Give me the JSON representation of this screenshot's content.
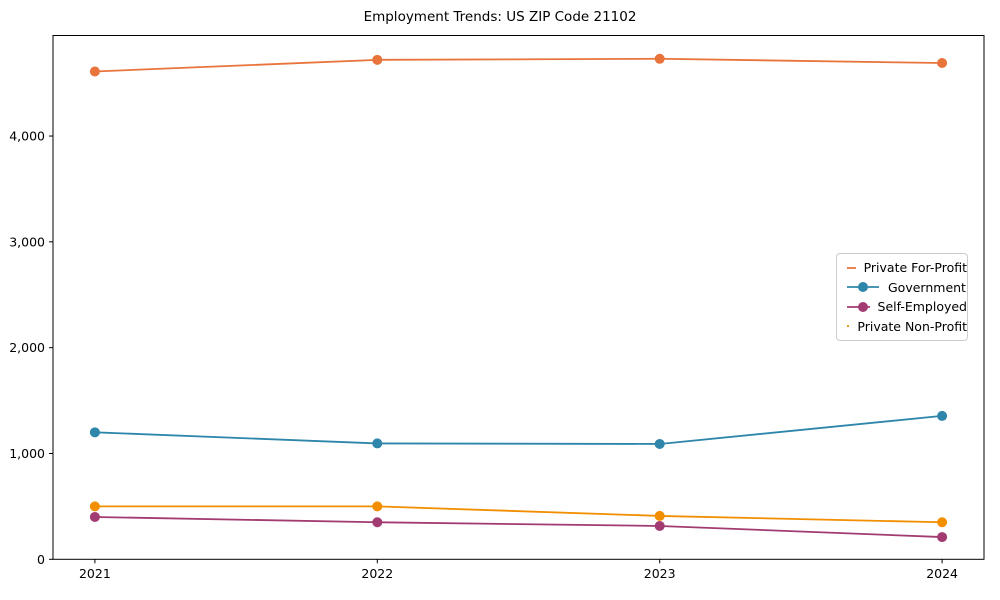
{
  "figure": {
    "title": "Employment Trends: US ZIP Code 21102"
  },
  "chart_data": {
    "type": "line",
    "title": "Employment Trends: US ZIP Code 21102",
    "categories": [
      "2021",
      "2022",
      "2023",
      "2024"
    ],
    "series": [
      {
        "name": "Private For-Profit",
        "color": "#E8743B",
        "values": [
          4610,
          4720,
          4730,
          4690
        ]
      },
      {
        "name": "Government",
        "color": "#2E86AB",
        "values": [
          1200,
          1095,
          1090,
          1355
        ]
      },
      {
        "name": "Self-Employed",
        "color": "#A23B72",
        "values": [
          400,
          350,
          315,
          210
        ]
      },
      {
        "name": "Private Non-Profit",
        "color": "#F18F01",
        "values": [
          500,
          500,
          410,
          350
        ]
      }
    ],
    "xlabel": "",
    "ylabel": "",
    "ylim": [
      0,
      4950
    ],
    "yticks": [
      0,
      1000,
      2000,
      3000,
      4000
    ],
    "ytick_labels": [
      "0",
      "1,000",
      "2,000",
      "3,000",
      "4,000"
    ],
    "grid": false,
    "legend_position": "center right",
    "marker": "circle",
    "line_width": 1.8,
    "marker_radius": 5
  },
  "colors": {
    "background": "#ffffff",
    "axis": "#000000",
    "text": "#000000",
    "legend_border": "#cccccc"
  }
}
